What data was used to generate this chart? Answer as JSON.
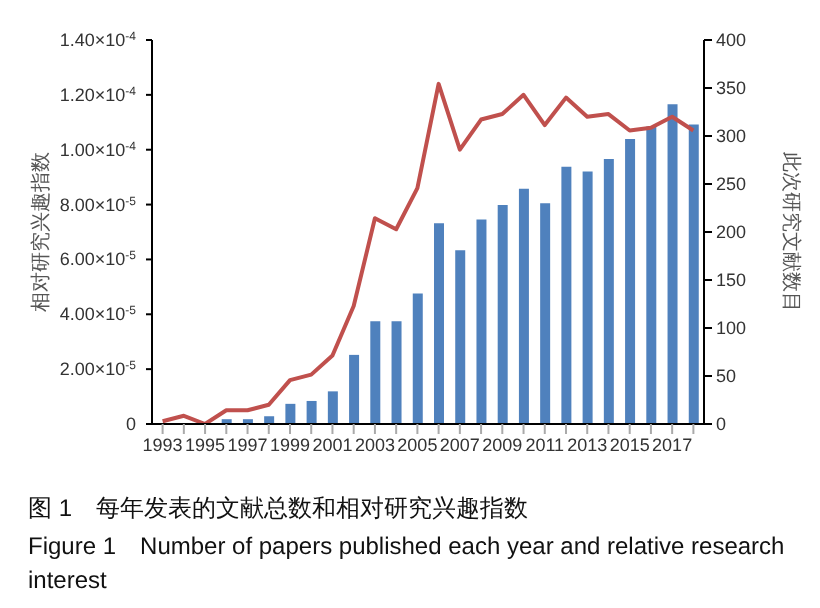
{
  "chart_data": {
    "type": "bar",
    "categories": [
      "1993",
      null,
      "1995",
      null,
      "1997",
      null,
      "1999",
      null,
      "2001",
      null,
      "2003",
      null,
      "2005",
      null,
      "2007",
      null,
      "2009",
      null,
      "2011",
      null,
      "2013",
      null,
      "2015",
      null,
      "2017",
      null
    ],
    "series": [
      {
        "axis": "y2",
        "color": "#4f81bd",
        "values": [
          0,
          0,
          0,
          5,
          5,
          8,
          21,
          24,
          34,
          72,
          107,
          107,
          136,
          209,
          181,
          213,
          228,
          245,
          230,
          268,
          263,
          276,
          297,
          310,
          333,
          312
        ]
      },
      {
        "type": "line",
        "color": "#c0504d",
        "values": [
          1e-06,
          3e-06,
          0,
          5e-06,
          5e-06,
          7e-06,
          1.6e-05,
          1.8e-05,
          2.5e-05,
          4.3e-05,
          7.5e-05,
          7.1e-05,
          8.6e-05,
          0.000124,
          0.0001,
          0.000111,
          0.000113,
          0.00012,
          0.000109,
          0.000119,
          0.000112,
          0.000113,
          0.000107,
          0.000108,
          0.000112,
          0.000107
        ]
      }
    ],
    "marker": "none",
    "ylabel": "相对研究兴趣指数",
    "y2label": "此次研究文献数目",
    "ylim": [
      0,
      0.00014
    ],
    "yticks": [
      {
        "value": 0,
        "label": "0"
      },
      {
        "value": 2e-05,
        "label": "2.00×10$^{-5}$"
      },
      {
        "value": 4e-05,
        "label": "4.00×10$^{-5}$"
      },
      {
        "value": 6e-05,
        "label": "6.00×10$^{-5}$"
      },
      {
        "value": 8e-05,
        "label": "8.00×10$^{-5}$"
      },
      {
        "value": 0.0001,
        "label": "1.00×10$^{-4}$"
      },
      {
        "value": 0.00012,
        "label": "1.20×10$^{-4}$"
      },
      {
        "value": 0.00014,
        "label": "1.40×10$^{-4}$"
      }
    ],
    "y2lim": [
      0,
      400
    ],
    "y2ticks": [
      0,
      50,
      100,
      150,
      200,
      250,
      300,
      350,
      400
    ],
    "grid": false,
    "legend": false,
    "annotations": [
      "图 1　每年发表的文献总数和相对研究兴趣指数",
      "Figure 1　Number of papers published each year and relative research interest"
    ]
  }
}
